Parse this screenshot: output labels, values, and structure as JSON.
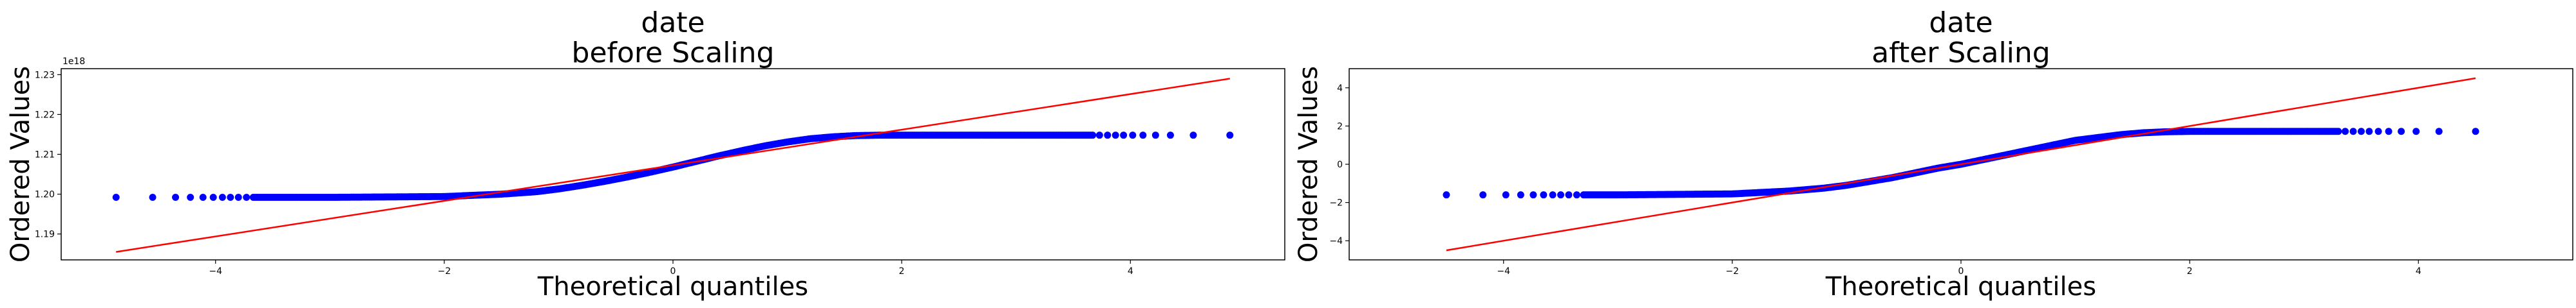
{
  "chart_data": [
    {
      "type": "scatter",
      "title_line1": "date",
      "title_line2": "before Scaling",
      "xlabel": "Theoretical quantiles",
      "ylabel": "Ordered Values",
      "y_offset_label": "1e18",
      "xlim": [
        -5.35,
        5.35
      ],
      "ylim": [
        1.1835,
        1.2315
      ],
      "xticks": [
        -4,
        -2,
        0,
        2,
        4
      ],
      "xtick_labels": [
        "−4",
        "−2",
        "0",
        "2",
        "4"
      ],
      "yticks": [
        1.19,
        1.2,
        1.21,
        1.22,
        1.23
      ],
      "ytick_labels": [
        "1.19",
        "1.20",
        "1.21",
        "1.22",
        "1.23"
      ],
      "fit_line": {
        "x": [
          -4.87,
          4.87
        ],
        "y": [
          1.1855,
          1.229
        ]
      },
      "points_curve": {
        "x": [
          -4.87,
          -4.5,
          -4.0,
          -3.0,
          -2.0,
          -1.5,
          -1.2,
          -1.0,
          -0.8,
          -0.6,
          -0.4,
          -0.2,
          0.0,
          0.2,
          0.4,
          0.6,
          0.8,
          1.0,
          1.2,
          1.4,
          1.6,
          1.8,
          2.0,
          2.5,
          3.0,
          4.0,
          4.5,
          4.87
        ],
        "y": [
          1.1992,
          1.1992,
          1.1992,
          1.1992,
          1.1994,
          1.2,
          1.2006,
          1.2013,
          1.2022,
          1.2032,
          1.2043,
          1.2055,
          1.2068,
          1.2082,
          1.2096,
          1.2109,
          1.2121,
          1.2131,
          1.2139,
          1.2144,
          1.2147,
          1.2148,
          1.2148,
          1.2148,
          1.2148,
          1.2148,
          1.2148,
          1.2148
        ]
      },
      "marker_color": "#0000ff",
      "line_color": "#ff0000"
    },
    {
      "type": "scatter",
      "title_line1": "date",
      "title_line2": "after Scaling",
      "xlabel": "Theoretical quantiles",
      "ylabel": "Ordered Values",
      "xlim": [
        -5.35,
        5.35
      ],
      "ylim": [
        -5,
        5
      ],
      "xticks": [
        -4,
        -2,
        0,
        2,
        4
      ],
      "xtick_labels": [
        "−4",
        "−2",
        "0",
        "2",
        "4"
      ],
      "yticks": [
        -4,
        -2,
        0,
        2,
        4
      ],
      "ytick_labels": [
        "−4",
        "−2",
        "0",
        "2",
        "4"
      ],
      "fit_line": {
        "x": [
          -4.5,
          4.5
        ],
        "y": [
          -4.5,
          4.5
        ]
      },
      "points_curve": {
        "x": [
          -4.5,
          -4.0,
          -3.0,
          -2.0,
          -1.5,
          -1.2,
          -1.0,
          -0.8,
          -0.6,
          -0.4,
          -0.2,
          0.0,
          0.2,
          0.4,
          0.6,
          0.8,
          1.0,
          1.2,
          1.4,
          1.6,
          1.8,
          2.0,
          2.5,
          3.0,
          4.0,
          4.5
        ],
        "y": [
          -1.6,
          -1.6,
          -1.6,
          -1.55,
          -1.4,
          -1.25,
          -1.1,
          -0.9,
          -0.7,
          -0.45,
          -0.2,
          0.0,
          0.25,
          0.5,
          0.75,
          1.0,
          1.25,
          1.4,
          1.55,
          1.65,
          1.7,
          1.72,
          1.72,
          1.72,
          1.72,
          1.72
        ]
      },
      "marker_color": "#0000ff",
      "line_color": "#ff0000"
    }
  ]
}
